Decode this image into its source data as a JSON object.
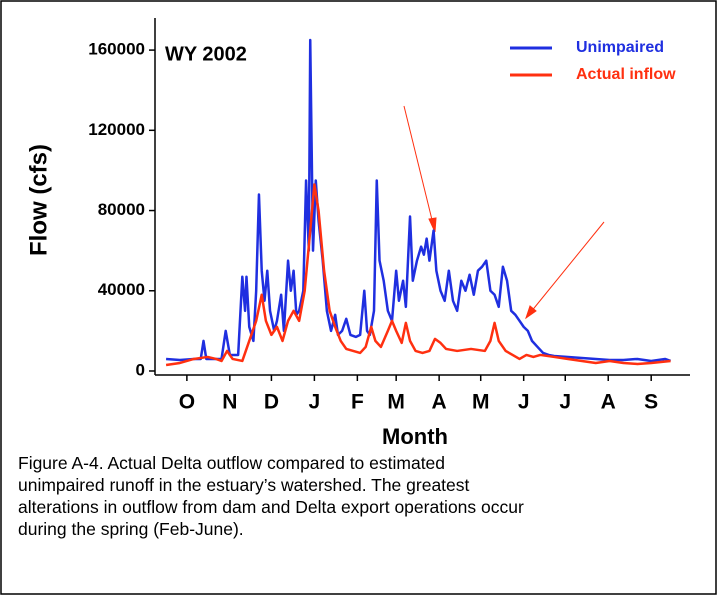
{
  "chart_data": {
    "type": "line",
    "annotation": "WY 2002",
    "ylabel": "Flow (cfs)",
    "xlabel": "Month",
    "xlim": [
      -8,
      378
    ],
    "xticks": [
      {
        "value": 15,
        "label": "O"
      },
      {
        "value": 46,
        "label": "N"
      },
      {
        "value": 76,
        "label": "D"
      },
      {
        "value": 107,
        "label": "J"
      },
      {
        "value": 138,
        "label": "F"
      },
      {
        "value": 166,
        "label": "M"
      },
      {
        "value": 197,
        "label": "A"
      },
      {
        "value": 227,
        "label": "M"
      },
      {
        "value": 258,
        "label": "J"
      },
      {
        "value": 288,
        "label": "J"
      },
      {
        "value": 319,
        "label": "A"
      },
      {
        "value": 350,
        "label": "S"
      }
    ],
    "ylim": [
      -2000,
      176000
    ],
    "yticks": [
      0,
      40000,
      80000,
      120000,
      160000
    ],
    "legend": "top-right",
    "series": [
      {
        "name": "Unimpaired",
        "color": "#1f2fe0",
        "x": [
          0,
          10,
          20,
          25,
          27,
          29,
          40,
          43,
          46,
          52,
          55,
          57,
          58,
          60,
          63,
          65,
          67,
          69,
          71,
          73,
          75,
          78,
          80,
          83,
          85,
          88,
          90,
          92,
          94,
          96,
          99,
          101,
          103,
          104,
          106,
          108,
          110,
          113,
          116,
          119,
          122,
          124,
          127,
          130,
          133,
          137,
          140,
          143,
          145,
          147,
          150,
          152,
          154,
          157,
          160,
          163,
          166,
          168,
          171,
          173,
          176,
          178,
          181,
          184,
          186,
          188,
          190,
          193,
          195,
          198,
          201,
          204,
          207,
          210,
          213,
          216,
          219,
          222,
          225,
          228,
          231,
          234,
          237,
          240,
          243,
          246,
          249,
          252,
          255,
          258,
          261,
          264,
          268,
          272,
          276,
          280,
          290,
          300,
          310,
          320,
          330,
          340,
          350,
          360,
          364
        ],
        "values": [
          6000,
          5500,
          6000,
          6000,
          15000,
          6000,
          6000,
          20000,
          8000,
          8000,
          47000,
          30000,
          47000,
          22000,
          15000,
          40000,
          88000,
          50000,
          35000,
          50000,
          30000,
          20000,
          25000,
          38000,
          20000,
          55000,
          40000,
          50000,
          28000,
          30000,
          40000,
          95000,
          60000,
          165000,
          60000,
          95000,
          75000,
          55000,
          30000,
          20000,
          28000,
          18000,
          20000,
          26000,
          18000,
          17000,
          18000,
          40000,
          20000,
          18000,
          30000,
          95000,
          55000,
          45000,
          30000,
          25000,
          50000,
          35000,
          45000,
          32000,
          77000,
          45000,
          55000,
          62000,
          58000,
          66000,
          55000,
          70000,
          50000,
          40000,
          35000,
          50000,
          35000,
          30000,
          45000,
          40000,
          48000,
          38000,
          50000,
          52000,
          55000,
          40000,
          38000,
          32000,
          52000,
          45000,
          30000,
          28000,
          25000,
          22000,
          20000,
          15000,
          12000,
          9000,
          8000,
          7500,
          7000,
          6500,
          6000,
          5500,
          5500,
          6000,
          5000,
          6000,
          5000
        ]
      },
      {
        "name": "Actual inflow",
        "color": "#ff3010",
        "x": [
          0,
          10,
          20,
          30,
          36,
          40,
          44,
          48,
          55,
          60,
          65,
          69,
          72,
          76,
          80,
          84,
          88,
          92,
          96,
          100,
          104,
          107,
          110,
          114,
          118,
          122,
          126,
          130,
          135,
          140,
          144,
          148,
          151,
          155,
          160,
          163,
          166,
          170,
          173,
          176,
          180,
          185,
          190,
          194,
          198,
          202,
          210,
          220,
          230,
          234,
          237,
          240,
          245,
          250,
          255,
          260,
          265,
          270,
          280,
          290,
          300,
          310,
          320,
          330,
          340,
          350,
          364
        ],
        "values": [
          3000,
          4000,
          6000,
          7000,
          6000,
          5000,
          10000,
          6000,
          5000,
          15000,
          25000,
          38000,
          25000,
          18000,
          22000,
          15000,
          25000,
          30000,
          25000,
          40000,
          70000,
          93000,
          80000,
          50000,
          30000,
          22000,
          15000,
          11000,
          10000,
          9000,
          12000,
          22000,
          15000,
          12000,
          20000,
          25000,
          20000,
          14000,
          24000,
          15000,
          10000,
          9000,
          10000,
          16000,
          14000,
          11000,
          10000,
          11000,
          10000,
          15000,
          24000,
          15000,
          10000,
          8000,
          6000,
          8000,
          7000,
          8000,
          7000,
          6000,
          5000,
          4000,
          5000,
          4000,
          3500,
          4000,
          5000
        ]
      }
    ]
  },
  "caption": [
    "Figure A-4. Actual Delta outflow compared to estimated",
    "unimpaired runoff in the estuary’s watershed.  The greatest",
    "alterations in outflow from dam and Delta export operations occur",
    "during the spring (Feb-June)."
  ]
}
